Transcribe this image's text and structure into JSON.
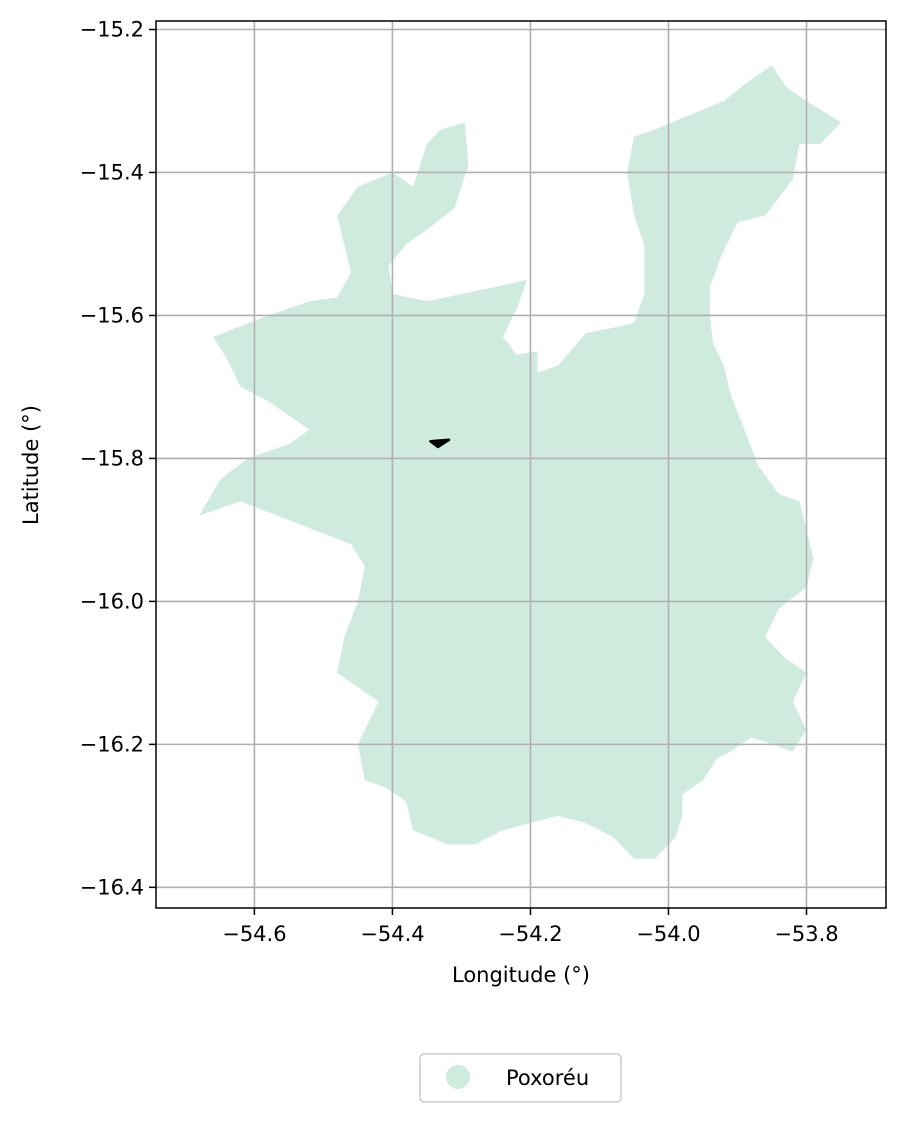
{
  "chart_data": {
    "type": "map",
    "title": "",
    "xlabel": "Longitude (°)",
    "ylabel": "Latitude (°)",
    "xlim": [
      -54.7426,
      -53.6848
    ],
    "ylim": [
      -16.4289,
      -15.1881
    ],
    "grid": true,
    "x_ticks": [
      {
        "value": -54.6,
        "label": "−54.6"
      },
      {
        "value": -54.4,
        "label": "−54.4"
      },
      {
        "value": -54.2,
        "label": "−54.2"
      },
      {
        "value": -54.0,
        "label": "−54.0"
      },
      {
        "value": -53.8,
        "label": "−53.8"
      }
    ],
    "y_ticks": [
      {
        "value": -15.2,
        "label": "−15.2"
      },
      {
        "value": -15.4,
        "label": "−15.4"
      },
      {
        "value": -15.6,
        "label": "−15.6"
      },
      {
        "value": -15.8,
        "label": "−15.8"
      },
      {
        "value": -16.0,
        "label": "−16.0"
      },
      {
        "value": -16.2,
        "label": "−16.2"
      },
      {
        "value": -16.4,
        "label": "−16.4"
      }
    ],
    "legend": {
      "placement": "bottom-center",
      "entries": [
        {
          "label": "Poxoréu",
          "color": "#cfebdd"
        }
      ]
    },
    "region": {
      "name": "Poxoréu",
      "fill": "#cfebdd",
      "boundary": [
        [
          -54.66,
          -15.63
        ],
        [
          -54.58,
          -15.6
        ],
        [
          -54.52,
          -15.58
        ],
        [
          -54.48,
          -15.575
        ],
        [
          -54.46,
          -15.54
        ],
        [
          -54.47,
          -15.5
        ],
        [
          -54.48,
          -15.46
        ],
        [
          -54.45,
          -15.42
        ],
        [
          -54.4,
          -15.4
        ],
        [
          -54.37,
          -15.42
        ],
        [
          -54.35,
          -15.36
        ],
        [
          -54.33,
          -15.34
        ],
        [
          -54.295,
          -15.33
        ],
        [
          -54.29,
          -15.39
        ],
        [
          -54.31,
          -15.45
        ],
        [
          -54.35,
          -15.48
        ],
        [
          -54.38,
          -15.5
        ],
        [
          -54.405,
          -15.53
        ],
        [
          -54.4,
          -15.57
        ],
        [
          -54.35,
          -15.58
        ],
        [
          -54.3,
          -15.57
        ],
        [
          -54.25,
          -15.56
        ],
        [
          -54.205,
          -15.55
        ],
        [
          -54.22,
          -15.59
        ],
        [
          -54.24,
          -15.63
        ],
        [
          -54.22,
          -15.655
        ],
        [
          -54.19,
          -15.65
        ],
        [
          -54.19,
          -15.68
        ],
        [
          -54.16,
          -15.67
        ],
        [
          -54.12,
          -15.625
        ],
        [
          -54.07,
          -15.615
        ],
        [
          -54.05,
          -15.61
        ],
        [
          -54.035,
          -15.57
        ],
        [
          -54.035,
          -15.5
        ],
        [
          -54.05,
          -15.46
        ],
        [
          -54.06,
          -15.4
        ],
        [
          -54.05,
          -15.35
        ],
        [
          -54.02,
          -15.34
        ],
        [
          -53.97,
          -15.32
        ],
        [
          -53.92,
          -15.3
        ],
        [
          -53.88,
          -15.27
        ],
        [
          -53.85,
          -15.25
        ],
        [
          -53.83,
          -15.28
        ],
        [
          -53.8,
          -15.3
        ],
        [
          -53.75,
          -15.33
        ],
        [
          -53.78,
          -15.36
        ],
        [
          -53.81,
          -15.36
        ],
        [
          -53.82,
          -15.41
        ],
        [
          -53.86,
          -15.46
        ],
        [
          -53.9,
          -15.47
        ],
        [
          -53.925,
          -15.52
        ],
        [
          -53.94,
          -15.56
        ],
        [
          -53.94,
          -15.6
        ],
        [
          -53.935,
          -15.64
        ],
        [
          -53.92,
          -15.67
        ],
        [
          -53.91,
          -15.71
        ],
        [
          -53.89,
          -15.76
        ],
        [
          -53.87,
          -15.81
        ],
        [
          -53.84,
          -15.85
        ],
        [
          -53.81,
          -15.86
        ],
        [
          -53.8,
          -15.9
        ],
        [
          -53.79,
          -15.94
        ],
        [
          -53.8,
          -15.98
        ],
        [
          -53.84,
          -16.01
        ],
        [
          -53.86,
          -16.05
        ],
        [
          -53.83,
          -16.08
        ],
        [
          -53.8,
          -16.1
        ],
        [
          -53.82,
          -16.14
        ],
        [
          -53.8,
          -16.18
        ],
        [
          -53.82,
          -16.21
        ],
        [
          -53.85,
          -16.2
        ],
        [
          -53.88,
          -16.19
        ],
        [
          -53.91,
          -16.21
        ],
        [
          -53.93,
          -16.22
        ],
        [
          -53.95,
          -16.25
        ],
        [
          -53.98,
          -16.27
        ],
        [
          -53.98,
          -16.3
        ],
        [
          -53.99,
          -16.33
        ],
        [
          -54.02,
          -16.36
        ],
        [
          -54.05,
          -16.36
        ],
        [
          -54.08,
          -16.33
        ],
        [
          -54.12,
          -16.31
        ],
        [
          -54.16,
          -16.3
        ],
        [
          -54.2,
          -16.31
        ],
        [
          -54.24,
          -16.32
        ],
        [
          -54.28,
          -16.34
        ],
        [
          -54.32,
          -16.34
        ],
        [
          -54.37,
          -16.32
        ],
        [
          -54.38,
          -16.28
        ],
        [
          -54.41,
          -16.26
        ],
        [
          -54.44,
          -16.25
        ],
        [
          -54.45,
          -16.2
        ],
        [
          -54.42,
          -16.14
        ],
        [
          -54.45,
          -16.12
        ],
        [
          -54.48,
          -16.1
        ],
        [
          -54.47,
          -16.05
        ],
        [
          -54.45,
          -16.0
        ],
        [
          -54.44,
          -15.95
        ],
        [
          -54.46,
          -15.92
        ],
        [
          -54.54,
          -15.89
        ],
        [
          -54.62,
          -15.86
        ],
        [
          -54.68,
          -15.88
        ],
        [
          -54.65,
          -15.83
        ],
        [
          -54.61,
          -15.8
        ],
        [
          -54.55,
          -15.78
        ],
        [
          -54.52,
          -15.76
        ],
        [
          -54.55,
          -15.74
        ],
        [
          -54.58,
          -15.72
        ],
        [
          -54.62,
          -15.7
        ],
        [
          -54.64,
          -15.66
        ],
        [
          -54.66,
          -15.63
        ]
      ]
    },
    "marker": {
      "color": "#000000",
      "points": [
        [
          -54.345,
          -15.776
        ],
        [
          -54.318,
          -15.774
        ],
        [
          -54.334,
          -15.784
        ]
      ]
    }
  }
}
